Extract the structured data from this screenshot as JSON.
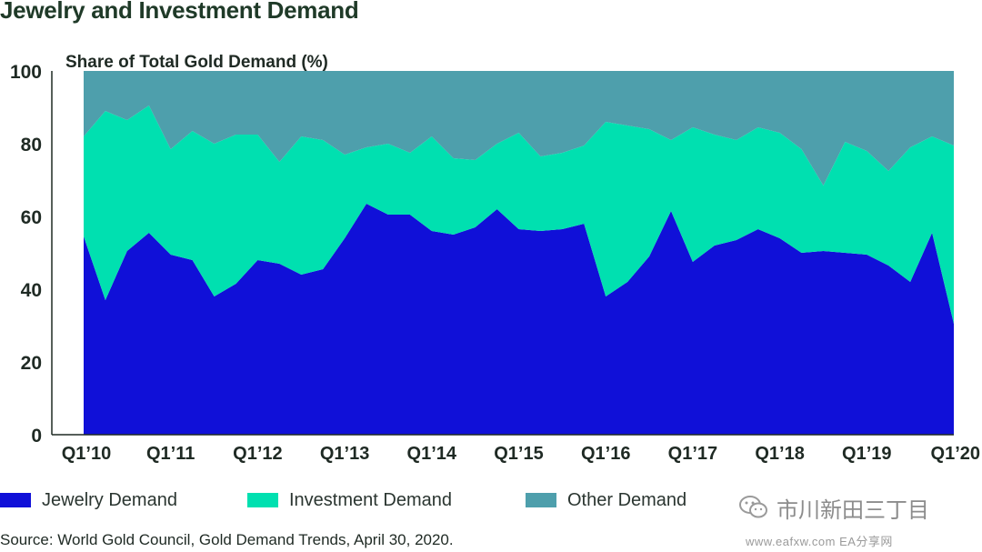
{
  "title": "Jewelry and Investment Demand",
  "source": "Source: World Gold Council, Gold Demand Trends, April 30, 2020.",
  "watermark": {
    "text": "市川新田三丁目",
    "url": "www.eafxw.com   EA分享网"
  },
  "chart_data": {
    "type": "area",
    "stacked": true,
    "ylabel": "Share of Total Gold Demand (%)",
    "ylim": [
      0,
      100
    ],
    "yticks": [
      0,
      20,
      40,
      60,
      80,
      100
    ],
    "tick_labels": [
      "Q1’10",
      "Q1’11",
      "Q1’12",
      "Q1’13",
      "Q1’14",
      "Q1’15",
      "Q1’16",
      "Q1’17",
      "Q1’18",
      "Q1’19",
      "Q1’20"
    ],
    "x": [
      "Q1’10",
      "Q2’10",
      "Q3’10",
      "Q4’10",
      "Q1’11",
      "Q2’11",
      "Q3’11",
      "Q4’11",
      "Q1’12",
      "Q2’12",
      "Q3’12",
      "Q4’12",
      "Q1’13",
      "Q2’13",
      "Q3’13",
      "Q4’13",
      "Q1’14",
      "Q2’14",
      "Q3’14",
      "Q4’14",
      "Q1’15",
      "Q2’15",
      "Q3’15",
      "Q4’15",
      "Q1’16",
      "Q2’16",
      "Q3’16",
      "Q4’16",
      "Q1’17",
      "Q2’17",
      "Q3’17",
      "Q4’17",
      "Q1’18",
      "Q2’18",
      "Q3’18",
      "Q4’18",
      "Q1’19",
      "Q2’19",
      "Q3’19",
      "Q4’19",
      "Q1’20"
    ],
    "legend_position": "bottom",
    "series": [
      {
        "name": "Jewelry Demand",
        "color": "#1010d8",
        "values": [
          54.5,
          37,
          50.5,
          55.5,
          49.5,
          48,
          38,
          41.5,
          48,
          47,
          44,
          45.5,
          54,
          63.5,
          60.5,
          60.5,
          56,
          55,
          57,
          62,
          56.5,
          56,
          56.5,
          58,
          38,
          42,
          49,
          61.5,
          47.5,
          52,
          53.5,
          56.5,
          54,
          50,
          50.5,
          50,
          49.5,
          46.5,
          42,
          55.5,
          30.5
        ]
      },
      {
        "name": "Investment Demand",
        "color": "#00e0b0",
        "values": [
          27.5,
          52,
          36,
          35,
          29,
          35.5,
          42,
          41,
          34.5,
          28,
          38,
          35.5,
          23,
          15.5,
          19.5,
          17,
          26,
          21,
          18.5,
          18,
          26.5,
          20.5,
          21,
          21.5,
          48,
          43,
          35,
          19.5,
          37,
          30.5,
          27.5,
          28,
          29,
          28.5,
          18,
          30.5,
          28.5,
          26,
          37,
          26.5,
          49
        ]
      },
      {
        "name": "Other Demand",
        "color": "#4e9fac",
        "values": [
          18,
          11,
          13.5,
          9.5,
          21.5,
          16.5,
          20,
          17.5,
          17.5,
          25,
          18,
          19,
          23,
          21,
          20,
          22.5,
          18,
          24,
          24.5,
          20,
          17,
          23.5,
          22.5,
          20.5,
          14,
          15,
          16,
          19,
          15.5,
          17.5,
          19,
          15.5,
          17,
          21.5,
          31.5,
          19.5,
          22,
          27.5,
          21,
          18,
          20.5
        ]
      }
    ]
  }
}
